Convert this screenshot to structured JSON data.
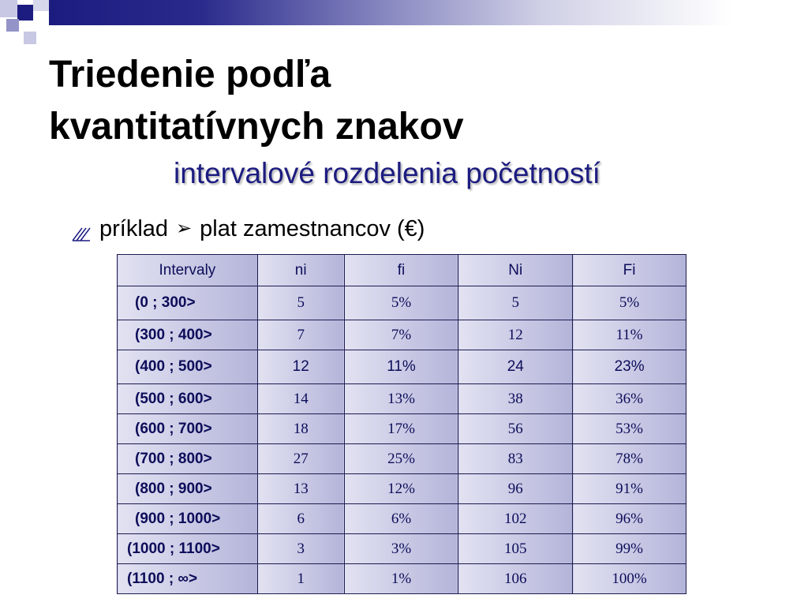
{
  "slide": {
    "title_line1": "Triedenie podľa",
    "title_line2": "kvantitatívnych znakov",
    "subtitle": "intervalové rozdelenia početností",
    "bullet_label": "príklad",
    "bullet_text": "plat zamestnancov (€)",
    "bullet_icon": "pencil-icon",
    "arrow_icon": "arrow-right-icon",
    "accent_color": "#1c1c80"
  },
  "table": {
    "headers": [
      "Intervaly",
      "ni",
      "fi",
      "Ni",
      "Fi"
    ],
    "rows": [
      [
        "(0 ;  300>",
        "5",
        "5%",
        "5",
        "5%"
      ],
      [
        "(300 ;  400>",
        "7",
        "7%",
        "12",
        "11%"
      ],
      [
        "(400 ;  500>",
        "12",
        "11%",
        "24",
        "23%"
      ],
      [
        "(500 ;  600>",
        "14",
        "13%",
        "38",
        "36%"
      ],
      [
        "(600 ;  700>",
        "18",
        "17%",
        "56",
        "53%"
      ],
      [
        "(700 ;  800>",
        "27",
        "25%",
        "83",
        "78%"
      ],
      [
        "(800 ;  900>",
        "13",
        "12%",
        "96",
        "91%"
      ],
      [
        "(900 ; 1000>",
        "6",
        "6%",
        "102",
        "96%"
      ],
      [
        "(1000 ; 1100>",
        "3",
        "3%",
        "105",
        "99%"
      ],
      [
        "(1100 ;  ∞>",
        "1",
        "1%",
        "106",
        "100%"
      ]
    ]
  }
}
